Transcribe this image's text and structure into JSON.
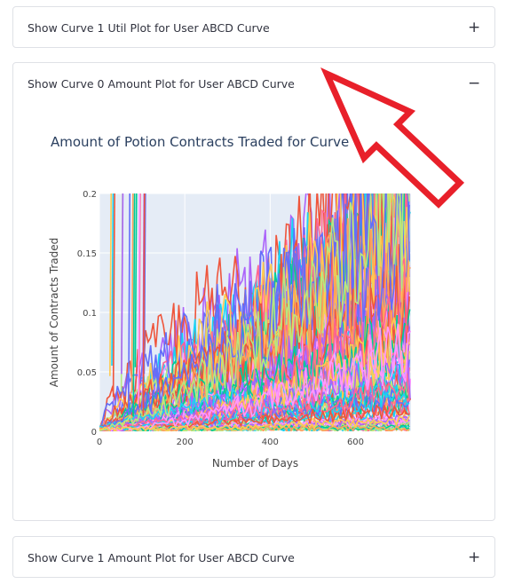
{
  "expanders": [
    {
      "title": "Show Curve 1 Util Plot for User ABCD Curve",
      "toggle": "+"
    },
    {
      "title": "Show Curve 0 Amount Plot for User ABCD Curve",
      "toggle": "−"
    },
    {
      "title": "Show Curve 1 Amount Plot for User ABCD Curve",
      "toggle": "+"
    }
  ],
  "chart_data": {
    "type": "line",
    "title": "Amount of Potion Contracts Traded for Curve 0",
    "xlabel": "Number of Days",
    "ylabel": "Amount of Contracts Traded",
    "xlim": [
      0,
      730
    ],
    "ylim": [
      0,
      0.2
    ],
    "xticks": [
      "0",
      "200",
      "400",
      "600"
    ],
    "yticks": [
      "0",
      "0.05",
      "0.1",
      "0.15",
      "0.2"
    ],
    "grid": true,
    "legend": "none",
    "series_count": 90
  },
  "colors": {
    "arrow": "#e8202a",
    "plot_bg": "#e5ecf6",
    "palette": [
      "#636efa",
      "#ef553b",
      "#00cc96",
      "#ab63fa",
      "#ffa15a",
      "#19d3f3",
      "#ff6692",
      "#b6e880",
      "#ff97ff",
      "#fecb52"
    ]
  }
}
